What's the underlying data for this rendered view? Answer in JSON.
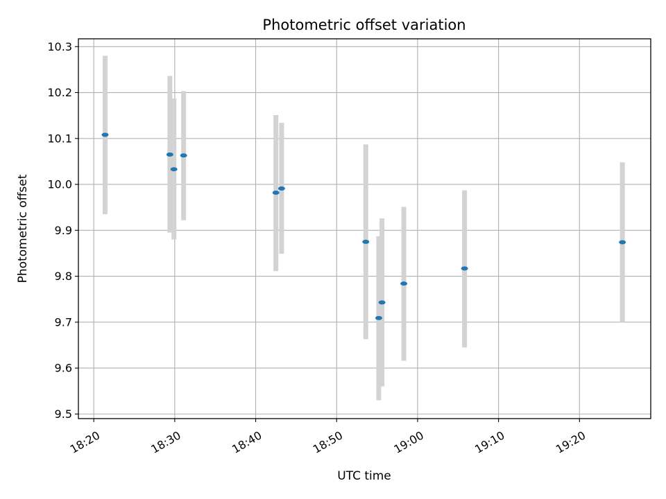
{
  "chart_data": {
    "type": "scatter",
    "title": "Photometric offset variation",
    "xlabel": "UTC time",
    "ylabel": "Photometric offset",
    "x_ticks": [
      "18:20",
      "18:30",
      "18:40",
      "18:50",
      "19:00",
      "19:10",
      "19:20"
    ],
    "x_tick_minutes": [
      1100,
      1110,
      1120,
      1130,
      1140,
      1150,
      1160
    ],
    "xlim_minutes": [
      1098.1,
      1168.8
    ],
    "y_ticks": [
      "9.5",
      "9.6",
      "9.7",
      "9.8",
      "9.9",
      "10.0",
      "10.1",
      "10.2",
      "10.3"
    ],
    "y_tick_values": [
      9.5,
      9.6,
      9.7,
      9.8,
      9.9,
      10.0,
      10.1,
      10.2,
      10.3
    ],
    "ylim": [
      9.49,
      10.317
    ],
    "grid": true,
    "colors": {
      "marker": "#1f77b4",
      "errorbar": "#d3d3d3",
      "grid": "#b0b0b0"
    },
    "points": [
      {
        "time": "18:21:24",
        "minute": 1101.4,
        "y": 10.108,
        "err_low": 9.935,
        "err_high": 10.28
      },
      {
        "time": "18:29:24",
        "minute": 1109.4,
        "y": 10.065,
        "err_low": 9.895,
        "err_high": 10.236
      },
      {
        "time": "18:29:54",
        "minute": 1109.9,
        "y": 10.033,
        "err_low": 9.88,
        "err_high": 10.187
      },
      {
        "time": "18:31:06",
        "minute": 1111.1,
        "y": 10.063,
        "err_low": 9.922,
        "err_high": 10.203
      },
      {
        "time": "18:42:30",
        "minute": 1122.5,
        "y": 9.982,
        "err_low": 9.811,
        "err_high": 10.151
      },
      {
        "time": "18:43:12",
        "minute": 1123.2,
        "y": 9.991,
        "err_low": 9.849,
        "err_high": 10.134
      },
      {
        "time": "18:53:36",
        "minute": 1133.6,
        "y": 9.875,
        "err_low": 9.663,
        "err_high": 10.087
      },
      {
        "time": "18:55:12",
        "minute": 1135.2,
        "y": 9.709,
        "err_low": 9.53,
        "err_high": 9.887
      },
      {
        "time": "18:55:36",
        "minute": 1135.6,
        "y": 9.743,
        "err_low": 9.56,
        "err_high": 9.926
      },
      {
        "time": "18:58:18",
        "minute": 1138.3,
        "y": 9.784,
        "err_low": 9.616,
        "err_high": 9.951
      },
      {
        "time": "19:05:48",
        "minute": 1145.8,
        "y": 9.817,
        "err_low": 9.645,
        "err_high": 9.987
      },
      {
        "time": "19:25:18",
        "minute": 1165.3,
        "y": 9.874,
        "err_low": 9.7,
        "err_high": 10.048
      }
    ]
  }
}
